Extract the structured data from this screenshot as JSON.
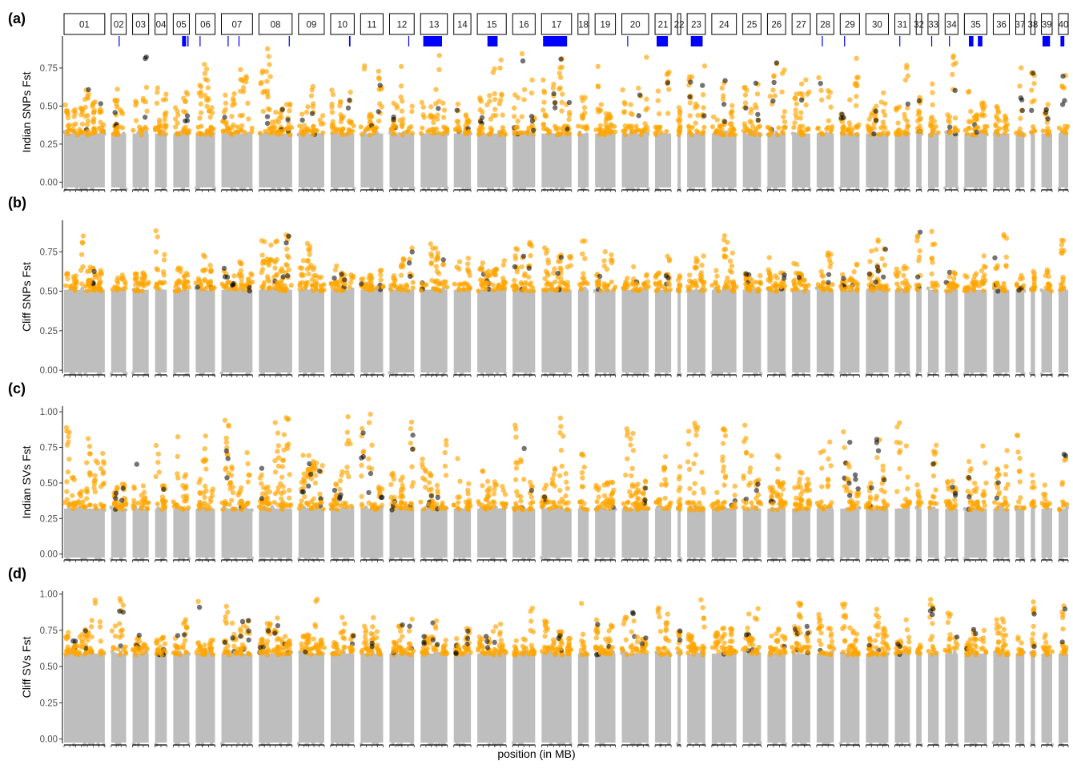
{
  "figure": {
    "xlabel": "position (in MB)",
    "chromosomes": [
      "01",
      "02",
      "03",
      "04",
      "05",
      "06",
      "07",
      "08",
      "09",
      "10",
      "11",
      "12",
      "13",
      "14",
      "15",
      "16",
      "17",
      "18",
      "19",
      "20",
      "21",
      "22",
      "23",
      "24",
      "25",
      "26",
      "27",
      "28",
      "29",
      "30",
      "31",
      "32",
      "33",
      "34",
      "35",
      "36",
      "37",
      "38",
      "39",
      "40"
    ],
    "chrom_relative_lengths": [
      1.9,
      0.7,
      0.75,
      0.55,
      0.75,
      0.9,
      1.45,
      1.55,
      1.2,
      1.1,
      1.05,
      1.15,
      1.25,
      0.8,
      1.35,
      1.05,
      1.4,
      0.5,
      0.95,
      1.25,
      0.75,
      0.15,
      0.85,
      1.15,
      0.85,
      0.85,
      0.85,
      0.8,
      0.9,
      1.05,
      0.7,
      0.25,
      0.5,
      0.6,
      1.05,
      0.75,
      0.4,
      0.2,
      0.5,
      0.45
    ],
    "colors": {
      "background_points": "#bebebe",
      "outlier_points": "#ffa500",
      "highlight_points": "#000000",
      "strip_fill": "#ffffff",
      "region_marks": "#0000ff"
    },
    "highlight_regions": [
      {
        "chrom": "02",
        "start": 0.5,
        "end": 0.52
      },
      {
        "chrom": "05",
        "start": 0.55,
        "end": 0.8
      },
      {
        "chrom": "05",
        "start": 0.88,
        "end": 0.95
      },
      {
        "chrom": "06",
        "start": 0.2,
        "end": 0.22
      },
      {
        "chrom": "07",
        "start": 0.2,
        "end": 0.22
      },
      {
        "chrom": "07",
        "start": 0.55,
        "end": 0.57
      },
      {
        "chrom": "08",
        "start": 0.9,
        "end": 0.92
      },
      {
        "chrom": "10",
        "start": 0.78,
        "end": 0.84
      },
      {
        "chrom": "12",
        "start": 0.76,
        "end": 0.78
      },
      {
        "chrom": "13",
        "start": 0.1,
        "end": 0.8
      },
      {
        "chrom": "15",
        "start": 0.35,
        "end": 0.7
      },
      {
        "chrom": "17",
        "start": 0.05,
        "end": 0.85
      },
      {
        "chrom": "20",
        "start": 0.2,
        "end": 0.22
      },
      {
        "chrom": "21",
        "start": 0.1,
        "end": 0.8
      },
      {
        "chrom": "23",
        "start": 0.2,
        "end": 0.85
      },
      {
        "chrom": "28",
        "start": 0.3,
        "end": 0.32
      },
      {
        "chrom": "29",
        "start": 0.2,
        "end": 0.24
      },
      {
        "chrom": "31",
        "start": 0.3,
        "end": 0.34
      },
      {
        "chrom": "33",
        "start": 0.3,
        "end": 0.33
      },
      {
        "chrom": "34",
        "start": 0.3,
        "end": 0.37
      },
      {
        "chrom": "35",
        "start": 0.2,
        "end": 0.4
      },
      {
        "chrom": "35",
        "start": 0.6,
        "end": 0.8
      },
      {
        "chrom": "39",
        "start": 0.1,
        "end": 0.8
      },
      {
        "chrom": "40",
        "start": 0.2,
        "end": 0.6
      }
    ]
  },
  "chart_data": [
    {
      "type": "scatter",
      "panel_label": "(a)",
      "ylabel": "Indian SNPs Fst",
      "ylim": [
        -0.04,
        0.96
      ],
      "yticks": [
        0.0,
        0.25,
        0.5,
        0.75
      ],
      "ytick_labels": [
        "0.00",
        "0.25",
        "0.50",
        "0.75"
      ],
      "outlier_threshold": 0.31,
      "background_max": 0.32,
      "outlier_max": 0.89,
      "grid": false
    },
    {
      "type": "scatter",
      "panel_label": "(b)",
      "ylabel": "Cliff SNPs Fst",
      "ylim": [
        -0.02,
        0.95
      ],
      "yticks": [
        0.0,
        0.25,
        0.5,
        0.75
      ],
      "ytick_labels": [
        "0.00",
        "0.25",
        "0.50",
        "0.75"
      ],
      "outlier_threshold": 0.5,
      "background_max": 0.51,
      "outlier_max": 0.91,
      "grid": false
    },
    {
      "type": "scatter",
      "panel_label": "(c)",
      "ylabel": "Indian SVs Fst",
      "ylim": [
        -0.03,
        1.04
      ],
      "yticks": [
        0.0,
        0.25,
        0.5,
        0.75,
        1.0
      ],
      "ytick_labels": [
        "0.00",
        "0.25",
        "0.50",
        "0.75",
        "1.00"
      ],
      "outlier_threshold": 0.31,
      "background_max": 0.32,
      "outlier_max": 1.0,
      "grid": false
    },
    {
      "type": "scatter",
      "panel_label": "(d)",
      "ylabel": "Cliff SVs Fst",
      "ylim": [
        -0.03,
        1.02
      ],
      "yticks": [
        0.0,
        0.25,
        0.5,
        0.75,
        1.0
      ],
      "ytick_labels": [
        "0.00",
        "0.25",
        "0.50",
        "0.75",
        "1.00"
      ],
      "outlier_threshold": 0.58,
      "background_max": 0.59,
      "outlier_max": 1.0,
      "grid": false
    }
  ]
}
